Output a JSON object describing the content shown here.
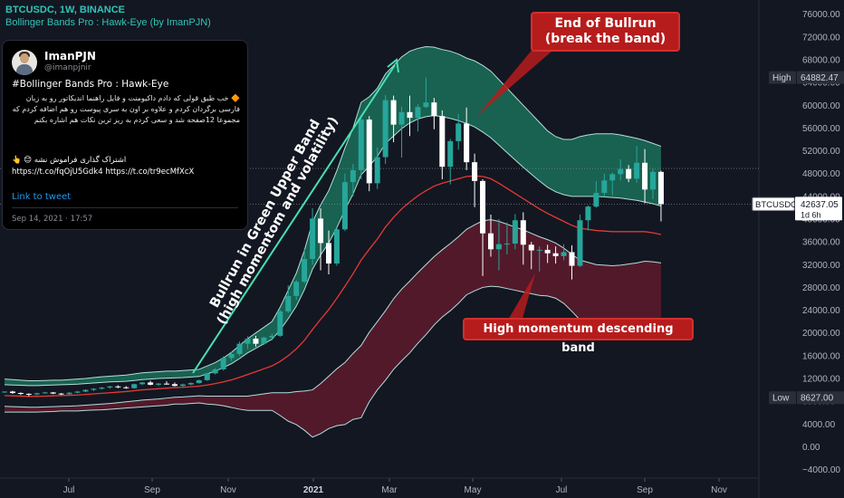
{
  "header": {
    "symbol": "BTCUSDC, 1W, BINANCE",
    "indicator": "Bollinger Bands Pro : Hawk-Eye (by ImanPJN)"
  },
  "tweet": {
    "name": "ImanPJN",
    "handle": "@imanpjnir",
    "title": "#Bollinger Bands Pro : Hawk-Eye",
    "body": "🔶 خب طبق قولی که دادم داکیومنت و فایل راهنما اندیکاتور رو به زبان فارسی برگردان کردم و علاوه بر اون به سری پیوست رو هم اضافه کردم که مجموعا 12صفحه شد و سعی کردم به ریز ترین نکات هم اشاره بکنم",
    "share_text": "اشتراک گذاری فراموش نشه 😊 👆",
    "share_links": "https://t.co/fqOjU5Gdk4 https://t.co/tr9ecMfXcX",
    "link_label": "Link to tweet",
    "date": "Sep 14, 2021 · 17:57"
  },
  "annotations": {
    "top_callout": [
      "End of Bullrun",
      "(break the band)"
    ],
    "bottom_callout": "High momentum descending band",
    "diagonal": [
      "Bullrun in Green Upper Band",
      "(high momentom and volatility)"
    ]
  },
  "chart_data": {
    "type": "candlestick",
    "symbol": "BTCUSDC",
    "timeframe": "1W",
    "exchange": "BINANCE",
    "ylim": [
      -5500,
      78500
    ],
    "y_ticks": [
      -4000,
      0,
      4000,
      8000,
      12000,
      16000,
      20000,
      24000,
      28000,
      32000,
      36000,
      40000,
      44000,
      48000,
      52000,
      56000,
      60000,
      64000,
      68000,
      72000,
      76000
    ],
    "y_tick_labels": [
      "−4000.00",
      "0.00",
      "4000.00",
      "8000.00",
      "12000.00",
      "16000.00",
      "20000.00",
      "24000.00",
      "28000.00",
      "32000.00",
      "36000.00",
      "40000.00",
      "44000.00",
      "48000.00",
      "52000.00",
      "56000.00",
      "60000.00",
      "64000.00",
      "68000.00",
      "72000.00",
      "76000.00"
    ],
    "x_labels": [
      "Jul",
      "Sep",
      "Nov",
      "2021",
      "Mar",
      "May",
      "Jul",
      "Sep",
      "Nov"
    ],
    "markers": {
      "high": {
        "label": "High",
        "value": 64882.47,
        "text": "64882.47"
      },
      "low": {
        "label": "Low",
        "value": 8627.0,
        "text": "8627.00"
      },
      "last": {
        "label": "BTCUSDC",
        "value": 42637.05,
        "text": "42637.05",
        "countdown": "1d 6h"
      }
    },
    "reference_line": 48900,
    "candles": [
      [
        9600,
        9750,
        9450,
        9700
      ],
      [
        9700,
        9850,
        9300,
        9450
      ],
      [
        9450,
        9550,
        9100,
        9300
      ],
      [
        9300,
        9400,
        8900,
        9200
      ],
      [
        9200,
        9500,
        9050,
        9400
      ],
      [
        9400,
        9650,
        9300,
        9550
      ],
      [
        9550,
        9600,
        9250,
        9350
      ],
      [
        9350,
        9450,
        9100,
        9250
      ],
      [
        9250,
        9600,
        9150,
        9500
      ],
      [
        9500,
        9800,
        9400,
        9700
      ],
      [
        9700,
        10100,
        9600,
        10000
      ],
      [
        10000,
        10300,
        9800,
        10200
      ],
      [
        10200,
        10500,
        10050,
        10400
      ],
      [
        10400,
        10700,
        10200,
        10600
      ],
      [
        10600,
        10800,
        10300,
        10450
      ],
      [
        10450,
        10650,
        10200,
        10300
      ],
      [
        10300,
        11100,
        10200,
        11000
      ],
      [
        11000,
        11400,
        10850,
        11300
      ],
      [
        11300,
        11600,
        10800,
        10900
      ],
      [
        10900,
        11200,
        10700,
        11100
      ],
      [
        11100,
        11500,
        10900,
        11000
      ],
      [
        11000,
        11300,
        10600,
        10700
      ],
      [
        10700,
        11100,
        10500,
        10950
      ],
      [
        10950,
        11300,
        10800,
        11200
      ],
      [
        11200,
        11800,
        11100,
        11700
      ],
      [
        11700,
        13000,
        11600,
        12900
      ],
      [
        12900,
        13800,
        12700,
        13600
      ],
      [
        13600,
        15900,
        13400,
        15600
      ],
      [
        15600,
        16700,
        15100,
        16300
      ],
      [
        16300,
        18500,
        16000,
        18100
      ],
      [
        18100,
        19400,
        17200,
        19000
      ],
      [
        19000,
        19500,
        17600,
        18100
      ],
      [
        18100,
        19300,
        17900,
        19200
      ],
      [
        19200,
        19900,
        18700,
        19500
      ],
      [
        19500,
        24100,
        19300,
        23800
      ],
      [
        23800,
        28400,
        23500,
        26500
      ],
      [
        26500,
        29300,
        25800,
        29000
      ],
      [
        29000,
        34800,
        28700,
        33000
      ],
      [
        33000,
        41900,
        32000,
        40100
      ],
      [
        40100,
        41900,
        31000,
        35800
      ],
      [
        35800,
        38000,
        30300,
        32200
      ],
      [
        32200,
        38500,
        31800,
        38200
      ],
      [
        38200,
        48000,
        37900,
        46500
      ],
      [
        46500,
        49700,
        44000,
        48600
      ],
      [
        48600,
        58300,
        47000,
        57500
      ],
      [
        57500,
        58100,
        44900,
        46300
      ],
      [
        46300,
        52600,
        45300,
        50900
      ],
      [
        50900,
        61800,
        49700,
        60900
      ],
      [
        60900,
        61700,
        53500,
        56600
      ],
      [
        56600,
        59800,
        50800,
        58800
      ],
      [
        58800,
        61700,
        54600,
        57800
      ],
      [
        57800,
        60200,
        55400,
        59700
      ],
      [
        59700,
        64900,
        59500,
        60500
      ],
      [
        60500,
        61300,
        55800,
        58100
      ],
      [
        58100,
        59100,
        47000,
        49200
      ],
      [
        49200,
        54100,
        46100,
        53700
      ],
      [
        53700,
        58500,
        52200,
        56800
      ],
      [
        56800,
        59600,
        48600,
        50000
      ],
      [
        50000,
        51500,
        42100,
        46700
      ],
      [
        46700,
        47000,
        30000,
        37500
      ],
      [
        37500,
        40800,
        33400,
        34700
      ],
      [
        34700,
        40000,
        31000,
        35600
      ],
      [
        35600,
        39400,
        33800,
        35700
      ],
      [
        35700,
        40900,
        34700,
        39800
      ],
      [
        39800,
        41200,
        32000,
        35500
      ],
      [
        35500,
        36000,
        31200,
        34500
      ],
      [
        34500,
        35200,
        30800,
        34600
      ],
      [
        34600,
        35500,
        32300,
        34000
      ],
      [
        34000,
        35200,
        32200,
        33500
      ],
      [
        33500,
        35600,
        32800,
        34200
      ],
      [
        34200,
        35400,
        29400,
        31800
      ],
      [
        31800,
        40800,
        31600,
        39800
      ],
      [
        39800,
        42400,
        38000,
        42200
      ],
      [
        42200,
        46700,
        42000,
        44600
      ],
      [
        44600,
        48000,
        43900,
        46800
      ],
      [
        46800,
        48200,
        44200,
        47900
      ],
      [
        47900,
        50500,
        46800,
        48800
      ],
      [
        48800,
        49500,
        46500,
        47100
      ],
      [
        47100,
        52900,
        46400,
        49900
      ],
      [
        49900,
        52300,
        42800,
        45200
      ],
      [
        45200,
        48800,
        43500,
        48300
      ],
      [
        48300,
        48500,
        39600,
        42637
      ]
    ],
    "bands": {
      "upper": [
        11900,
        11800,
        11700,
        11600,
        11600,
        11650,
        11700,
        11700,
        11800,
        11900,
        12000,
        12150,
        12300,
        12400,
        12500,
        12600,
        12800,
        13000,
        13100,
        13200,
        13300,
        13300,
        13400,
        13500,
        13600,
        14200,
        14800,
        15600,
        16600,
        17800,
        19000,
        20000,
        21000,
        22000,
        24500,
        27500,
        30500,
        34500,
        39500,
        42500,
        45000,
        48500,
        52500,
        56000,
        60500,
        61500,
        63000,
        65500,
        67000,
        68500,
        69500,
        70000,
        70300,
        70200,
        69800,
        69500,
        69000,
        68300,
        67800,
        67000,
        66000,
        64500,
        63000,
        61500,
        60000,
        58500,
        57000,
        55500,
        54500,
        54000,
        54000,
        54500,
        54800,
        55000,
        55000,
        55000,
        54800,
        54500,
        54200,
        53800,
        53300,
        52800
      ],
      "inner_upper": [
        10900,
        10850,
        10800,
        10750,
        10750,
        10800,
        10850,
        10900,
        10950,
        11000,
        11100,
        11200,
        11300,
        11400,
        11450,
        11500,
        11650,
        11800,
        11900,
        12000,
        12050,
        12100,
        12150,
        12250,
        12350,
        12800,
        13300,
        13900,
        14600,
        15500,
        16500,
        17300,
        18100,
        18900,
        20500,
        22500,
        24700,
        27600,
        31200,
        33700,
        35800,
        38500,
        41600,
        44400,
        47800,
        49300,
        51000,
        53300,
        54600,
        55900,
        56900,
        57600,
        58000,
        58200,
        58000,
        57700,
        57300,
        56800,
        56200,
        55300,
        54300,
        53000,
        51700,
        50400,
        49100,
        47900,
        46700,
        45600,
        44800,
        44300,
        44000,
        44000,
        44000,
        44000,
        43900,
        43800,
        43700,
        43500,
        43300,
        43000,
        42700,
        42300
      ],
      "basis": [
        9000,
        8950,
        8900,
        8850,
        8850,
        8900,
        8950,
        9000,
        9050,
        9100,
        9200,
        9300,
        9400,
        9500,
        9600,
        9700,
        9850,
        10000,
        10100,
        10200,
        10300,
        10400,
        10450,
        10550,
        10650,
        10850,
        11100,
        11400,
        11750,
        12200,
        12700,
        13200,
        13700,
        14200,
        15000,
        16000,
        17200,
        18700,
        20600,
        22400,
        24100,
        26100,
        28200,
        30400,
        32800,
        34700,
        36500,
        38600,
        40300,
        41800,
        43000,
        44100,
        45000,
        45800,
        46300,
        46700,
        47100,
        47500,
        47600,
        47500,
        47100,
        46300,
        45400,
        44500,
        43600,
        42700,
        41800,
        41000,
        40300,
        39600,
        38900,
        38400,
        38200,
        38000,
        37900,
        37800,
        37800,
        37800,
        37800,
        37800,
        37600,
        37300
      ],
      "inner_lower": [
        7100,
        7050,
        7000,
        6950,
        6950,
        7000,
        7050,
        7100,
        7150,
        7200,
        7300,
        7400,
        7500,
        7600,
        7750,
        7900,
        8050,
        8200,
        8300,
        8400,
        8550,
        8700,
        8750,
        8850,
        8950,
        8900,
        8900,
        8900,
        8900,
        8900,
        8900,
        9100,
        9300,
        9500,
        9500,
        9500,
        9700,
        9800,
        10000,
        11100,
        12400,
        13700,
        14800,
        16400,
        17800,
        20100,
        22000,
        23900,
        26000,
        27700,
        29100,
        30600,
        32000,
        33400,
        34600,
        35700,
        36900,
        38200,
        39000,
        39700,
        39900,
        39600,
        39100,
        38600,
        38100,
        37500,
        36900,
        36400,
        35800,
        34900,
        33800,
        32800,
        32400,
        32000,
        31900,
        31800,
        31900,
        32100,
        32300,
        32600,
        32500,
        32300
      ],
      "lower": [
        6100,
        6100,
        6100,
        6100,
        6100,
        6150,
        6200,
        6300,
        6300,
        6300,
        6400,
        6450,
        6500,
        6600,
        6700,
        6800,
        6900,
        7000,
        7100,
        7200,
        7300,
        7500,
        7500,
        7600,
        7700,
        7500,
        7400,
        7200,
        6900,
        6600,
        6400,
        6400,
        6400,
        6400,
        5500,
        4500,
        3900,
        2900,
        1700,
        2300,
        3200,
        3700,
        3900,
        4800,
        5100,
        7900,
        10000,
        11700,
        13600,
        15100,
        16500,
        18200,
        19700,
        21400,
        22800,
        23900,
        25200,
        26700,
        27400,
        28000,
        28200,
        28100,
        27800,
        27500,
        27200,
        26900,
        26600,
        26500,
        26100,
        25200,
        23800,
        22300,
        21600,
        21000,
        20800,
        20600,
        20800,
        21100,
        21400,
        21800,
        21900,
        21800
      ]
    }
  },
  "colors": {
    "background": "#131722",
    "bull_candle": "#26a69a",
    "bear_candle": "#ffffff",
    "upper_fill": "#1b6e58",
    "lower_fill": "#5a1a2c",
    "basis": "#e53935",
    "band_line": "#b2dfdb",
    "accent": "#2fc5b8",
    "callout": "#b71c1c"
  }
}
